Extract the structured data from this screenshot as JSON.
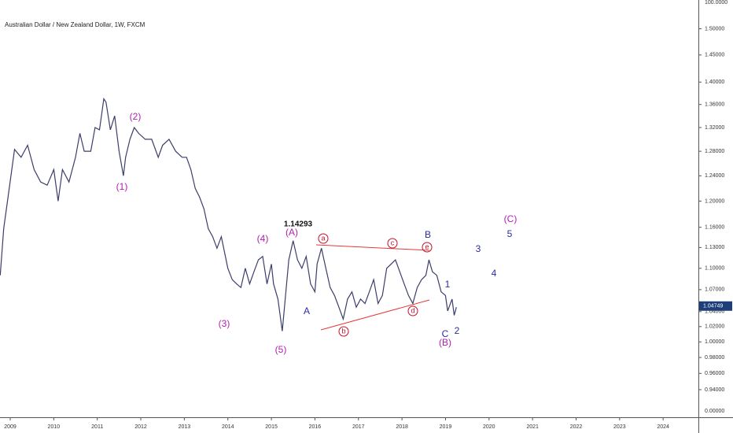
{
  "chart_data": {
    "type": "line",
    "title": "Australian Dollar / New Zealand Dollar, 1W, FXCM",
    "log_scale": true,
    "grid": false,
    "color": "#3b3d6b",
    "xlim": [
      2008.765,
      2024.81
    ],
    "xticks": [
      2009,
      2010,
      2011,
      2012,
      2013,
      2014,
      2015,
      2016,
      2017,
      2018,
      2019,
      2020,
      2021,
      2022,
      2023,
      2024
    ],
    "ylim": [
      0.907,
      1.557
    ],
    "yticks": [
      {
        "value": 1.5,
        "label": "1.50000"
      },
      {
        "value": 1.45,
        "label": "1.45000"
      },
      {
        "value": 1.4,
        "label": "1.40000"
      },
      {
        "value": 1.36,
        "label": "1.36000"
      },
      {
        "value": 1.32,
        "label": "1.32000"
      },
      {
        "value": 1.28,
        "label": "1.28000"
      },
      {
        "value": 1.24,
        "label": "1.24000"
      },
      {
        "value": 1.2,
        "label": "1.20000"
      },
      {
        "value": 1.16,
        "label": "1.16000"
      },
      {
        "value": 1.13,
        "label": "1.13000"
      },
      {
        "value": 1.1,
        "label": "1.10000"
      },
      {
        "value": 1.07,
        "label": "1.07000"
      },
      {
        "value": 1.04,
        "label": "1.04000"
      },
      {
        "value": 1.02,
        "label": "1.02000"
      },
      {
        "value": 1.0,
        "label": "1.00000"
      },
      {
        "value": 0.98,
        "label": "0.98000"
      },
      {
        "value": 0.96,
        "label": "0.96000"
      },
      {
        "value": 0.94,
        "label": "0.94000"
      }
    ],
    "extra_axis_labels": [
      "100.0000",
      "0.00000"
    ],
    "last_price": {
      "value": 1.04749,
      "label": "1.04749"
    },
    "x": [
      2008.77,
      2008.85,
      2008.95,
      2009.1,
      2009.25,
      2009.4,
      2009.55,
      2009.7,
      2009.85,
      2010.0,
      2010.1,
      2010.2,
      2010.35,
      2010.5,
      2010.6,
      2010.7,
      2010.85,
      2010.95,
      2011.05,
      2011.15,
      2011.2,
      2011.3,
      2011.4,
      2011.5,
      2011.6,
      2011.65,
      2011.75,
      2011.85,
      2011.95,
      2012.1,
      2012.25,
      2012.4,
      2012.5,
      2012.65,
      2012.8,
      2012.95,
      2013.05,
      2013.15,
      2013.25,
      2013.35,
      2013.45,
      2013.55,
      2013.65,
      2013.75,
      2013.85,
      2014.0,
      2014.1,
      2014.2,
      2014.3,
      2014.4,
      2014.5,
      2014.6,
      2014.7,
      2014.8,
      2014.9,
      2015.0,
      2015.05,
      2015.15,
      2015.25,
      2015.3,
      2015.4,
      2015.5,
      2015.6,
      2015.7,
      2015.8,
      2015.9,
      2016.0,
      2016.05,
      2016.15,
      2016.25,
      2016.35,
      2016.45,
      2016.55,
      2016.65,
      2016.75,
      2016.85,
      2016.95,
      2017.05,
      2017.15,
      2017.25,
      2017.35,
      2017.45,
      2017.55,
      2017.65,
      2017.75,
      2017.85,
      2017.95,
      2018.05,
      2018.15,
      2018.25,
      2018.35,
      2018.45,
      2018.55,
      2018.62,
      2018.7,
      2018.8,
      2018.9,
      2019.0,
      2019.05,
      2019.15,
      2019.2,
      2019.25
    ],
    "values": [
      1.09,
      1.158,
      1.206,
      1.283,
      1.27,
      1.29,
      1.25,
      1.23,
      1.225,
      1.25,
      1.2,
      1.25,
      1.23,
      1.27,
      1.31,
      1.28,
      1.28,
      1.32,
      1.316,
      1.37,
      1.364,
      1.316,
      1.34,
      1.28,
      1.24,
      1.27,
      1.3,
      1.32,
      1.31,
      1.3,
      1.3,
      1.27,
      1.29,
      1.3,
      1.28,
      1.27,
      1.27,
      1.25,
      1.22,
      1.206,
      1.188,
      1.158,
      1.146,
      1.129,
      1.146,
      1.1,
      1.084,
      1.078,
      1.073,
      1.1,
      1.078,
      1.095,
      1.112,
      1.117,
      1.078,
      1.106,
      1.078,
      1.057,
      1.014,
      1.046,
      1.112,
      1.14,
      1.112,
      1.1,
      1.117,
      1.078,
      1.067,
      1.106,
      1.129,
      1.1,
      1.073,
      1.062,
      1.046,
      1.03,
      1.057,
      1.067,
      1.046,
      1.057,
      1.051,
      1.067,
      1.084,
      1.051,
      1.062,
      1.1,
      1.106,
      1.112,
      1.095,
      1.078,
      1.062,
      1.051,
      1.073,
      1.084,
      1.09,
      1.112,
      1.095,
      1.09,
      1.067,
      1.062,
      1.041,
      1.057,
      1.035,
      1.046
    ],
    "annotations": [
      {
        "text": "(1)",
        "color": "#b01fb0"
      },
      {
        "text": "(2)",
        "color": "#b01fb0"
      },
      {
        "text": "(3)",
        "color": "#b01fb0"
      },
      {
        "text": "(4)",
        "color": "#b01fb0"
      },
      {
        "text": "(5)",
        "color": "#b01fb0"
      },
      {
        "text": "(A)",
        "color": "#b01fb0"
      },
      {
        "text": "(B)",
        "color": "#b01fb0"
      },
      {
        "text": "(C)",
        "color": "#b01fb0"
      },
      {
        "text": "A",
        "color": "#2b2ba0"
      },
      {
        "text": "B",
        "color": "#2b2ba0"
      },
      {
        "text": "C",
        "color": "#2b2ba0"
      },
      {
        "text": "1",
        "color": "#2b2ba0"
      },
      {
        "text": "2",
        "color": "#2b2ba0"
      },
      {
        "text": "3",
        "color": "#2b2ba0"
      },
      {
        "text": "4",
        "color": "#2b2ba0"
      },
      {
        "text": "5",
        "color": "#2b2ba0"
      },
      {
        "text": "a",
        "color": "#c0102a"
      },
      {
        "text": "b",
        "color": "#c0102a"
      },
      {
        "text": "c",
        "color": "#c0102a"
      },
      {
        "text": "d",
        "color": "#c0102a"
      },
      {
        "text": "e",
        "color": "#c0102a"
      },
      {
        "text": "1.14293",
        "color": "#111111"
      }
    ]
  }
}
